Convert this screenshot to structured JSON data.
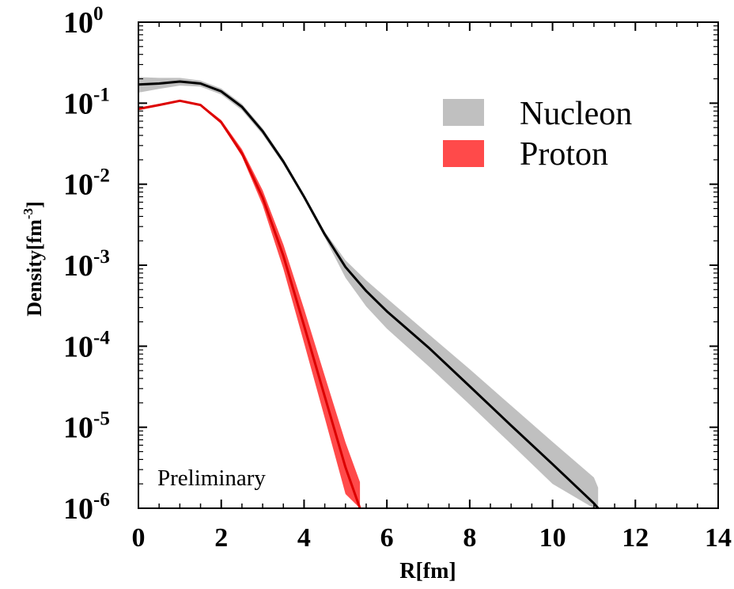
{
  "chart_data": {
    "type": "line",
    "title": "",
    "xlabel": "R[fm]",
    "ylabel": "Density[fm",
    "ylabel_sup": "-3",
    "ylabel_close": "]",
    "xlim": [
      0,
      14
    ],
    "ylim": [
      1e-06,
      1
    ],
    "yscale": "log",
    "grid": false,
    "legend_position": "top-right",
    "x_ticks": [
      0,
      2,
      4,
      6,
      8,
      10,
      12,
      14
    ],
    "x_tick_labels": [
      "0",
      "2",
      "4",
      "6",
      "8",
      "10",
      "12",
      "14"
    ],
    "y_ticks": [
      {
        "value": 1,
        "base": "10",
        "exp": "0"
      },
      {
        "value": 0.1,
        "base": "10",
        "exp": "-1"
      },
      {
        "value": 0.01,
        "base": "10",
        "exp": "-2"
      },
      {
        "value": 0.001,
        "base": "10",
        "exp": "-3"
      },
      {
        "value": 0.0001,
        "base": "10",
        "exp": "-4"
      },
      {
        "value": 1e-05,
        "base": "10",
        "exp": "-5"
      },
      {
        "value": 1e-06,
        "base": "10",
        "exp": "-6"
      }
    ],
    "annotation": "Preliminary",
    "series": [
      {
        "name": "Nucleon",
        "line_color": "#000000",
        "band_color": "#c0c0c0",
        "x": [
          0,
          0.5,
          1.0,
          1.5,
          2.0,
          2.5,
          3.0,
          3.5,
          4.0,
          4.5,
          5.0,
          5.5,
          6.0,
          7.0,
          8.0,
          9.0,
          10.0,
          11.0,
          11.1
        ],
        "y": [
          0.17,
          0.175,
          0.185,
          0.175,
          0.14,
          0.09,
          0.045,
          0.019,
          0.007,
          0.0024,
          0.00095,
          0.00048,
          0.00027,
          9.7e-05,
          3.2e-05,
          1.05e-05,
          3.5e-06,
          1.15e-06,
          1e-06
        ],
        "band_lower": [
          0.135,
          0.15,
          0.165,
          0.16,
          0.128,
          0.082,
          0.041,
          0.0175,
          0.0066,
          0.0022,
          0.0007,
          0.00031,
          0.000165,
          5.7e-05,
          1.9e-05,
          6.2e-06,
          2e-06,
          1e-06,
          1e-06
        ],
        "band_upper": [
          0.21,
          0.205,
          0.205,
          0.19,
          0.152,
          0.098,
          0.049,
          0.0205,
          0.0075,
          0.0026,
          0.00115,
          0.00065,
          0.00039,
          0.000142,
          5.2e-05,
          1.85e-05,
          6.6e-06,
          2.4e-06,
          1.8e-06
        ]
      },
      {
        "name": "Proton",
        "line_color": "#dd0000",
        "band_color": "#ff4a4a",
        "x": [
          0,
          0.5,
          1.0,
          1.5,
          2.0,
          2.5,
          3.0,
          3.5,
          4.0,
          4.5,
          5.0,
          5.35
        ],
        "y": [
          0.085,
          0.095,
          0.107,
          0.095,
          0.058,
          0.024,
          0.0068,
          0.0013,
          0.00018,
          2.4e-05,
          3.2e-06,
          1e-06
        ],
        "band_lower": [
          0.083,
          0.093,
          0.105,
          0.093,
          0.056,
          0.022,
          0.0055,
          0.0009,
          0.00011,
          1.3e-05,
          1.5e-06,
          1e-06
        ],
        "band_upper": [
          0.088,
          0.098,
          0.11,
          0.098,
          0.062,
          0.027,
          0.0084,
          0.0018,
          0.00029,
          4.3e-05,
          6.5e-06,
          2.1e-06
        ]
      }
    ]
  }
}
